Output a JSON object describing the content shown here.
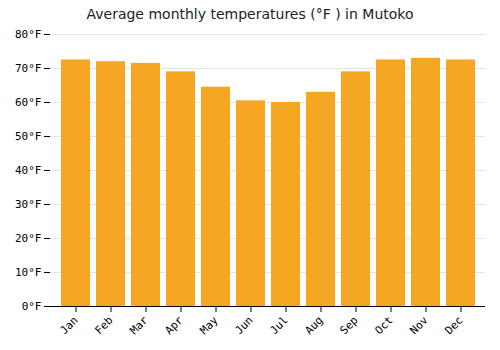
{
  "chart_data": {
    "type": "bar",
    "title": "Average monthly temperatures (°F ) in Mutoko",
    "categories": [
      "Jan",
      "Feb",
      "Mar",
      "Apr",
      "May",
      "Jun",
      "Jul",
      "Aug",
      "Sep",
      "Oct",
      "Nov",
      "Dec"
    ],
    "values": [
      72.5,
      72.0,
      71.5,
      69.0,
      64.5,
      60.5,
      60.0,
      63.0,
      69.0,
      72.5,
      73.0,
      72.5
    ],
    "color": "#F5A623",
    "ylim": [
      0,
      80
    ],
    "yticks": [
      {
        "value": 0,
        "label": "0°F"
      },
      {
        "value": 10,
        "label": "10°F"
      },
      {
        "value": 20,
        "label": "20°F"
      },
      {
        "value": 30,
        "label": "30°F"
      },
      {
        "value": 40,
        "label": "40°F"
      },
      {
        "value": 50,
        "label": "50°F"
      },
      {
        "value": 60,
        "label": "60°F"
      },
      {
        "value": 70,
        "label": "70°F"
      },
      {
        "value": 80,
        "label": "80°F"
      }
    ],
    "grid": true
  }
}
